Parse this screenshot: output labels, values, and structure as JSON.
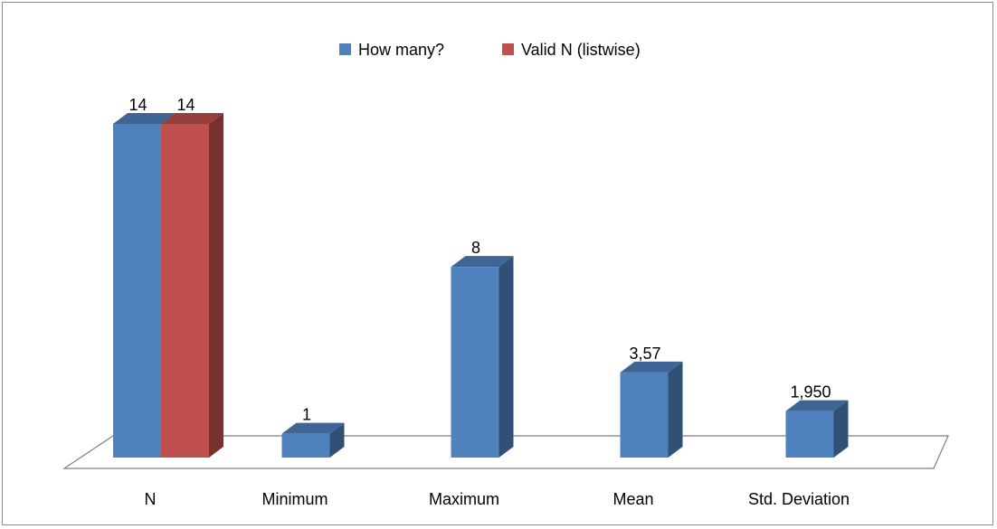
{
  "chart_data": {
    "type": "bar",
    "categories": [
      "N",
      "Minimum",
      "Maximum",
      "Mean",
      "Std. Deviation"
    ],
    "series": [
      {
        "name": "How many?",
        "values": [
          14,
          1,
          8,
          3.57,
          1.95
        ],
        "labels": [
          "14",
          "1",
          "8",
          "3,57",
          "1,950"
        ],
        "color": "#4F81BD"
      },
      {
        "name": "Valid N (listwise)",
        "values": [
          14,
          null,
          null,
          null,
          null
        ],
        "labels": [
          "14",
          "",
          "",
          "",
          ""
        ],
        "color": "#C0504D"
      }
    ],
    "ylim": [
      0,
      14
    ],
    "grid": false,
    "legend": "top-center",
    "style": "3d-clustered-column"
  }
}
